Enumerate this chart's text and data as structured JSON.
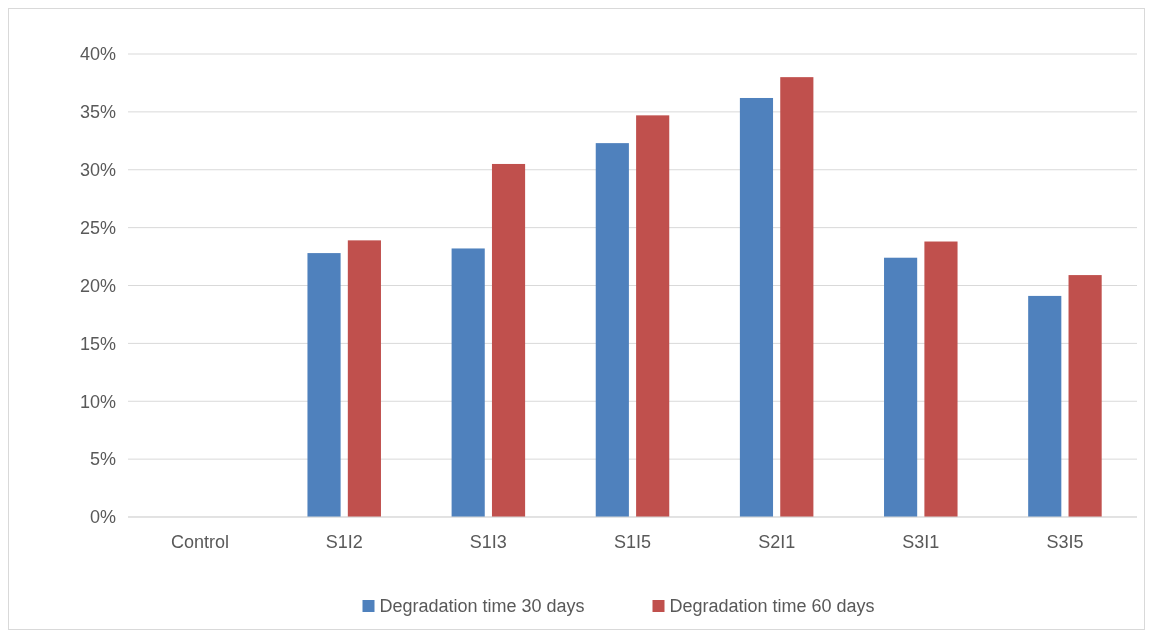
{
  "chart_data": {
    "type": "bar",
    "categories": [
      "Control",
      "S1I2",
      "S1I3",
      "S1I5",
      "S2I1",
      "S3I1",
      "S3I5"
    ],
    "series": [
      {
        "name": "Degradation time 30 days",
        "color": "#4f81bd",
        "values": [
          0,
          22.8,
          23.2,
          32.3,
          36.2,
          22.4,
          19.1
        ]
      },
      {
        "name": "Degradation time 60 days",
        "color": "#c0504d",
        "values": [
          0,
          23.9,
          30.5,
          34.7,
          38.0,
          23.8,
          20.9
        ]
      }
    ],
    "ylim": [
      0,
      40
    ],
    "yticks": [
      {
        "value": 0,
        "label": "0%"
      },
      {
        "value": 5,
        "label": "5%"
      },
      {
        "value": 10,
        "label": "10%"
      },
      {
        "value": 15,
        "label": "15%"
      },
      {
        "value": 20,
        "label": "20%"
      },
      {
        "value": 25,
        "label": "25%"
      },
      {
        "value": 30,
        "label": "30%"
      },
      {
        "value": 35,
        "label": "35%"
      },
      {
        "value": 40,
        "label": "40%"
      }
    ],
    "grid": "y",
    "legend": "bottom"
  }
}
